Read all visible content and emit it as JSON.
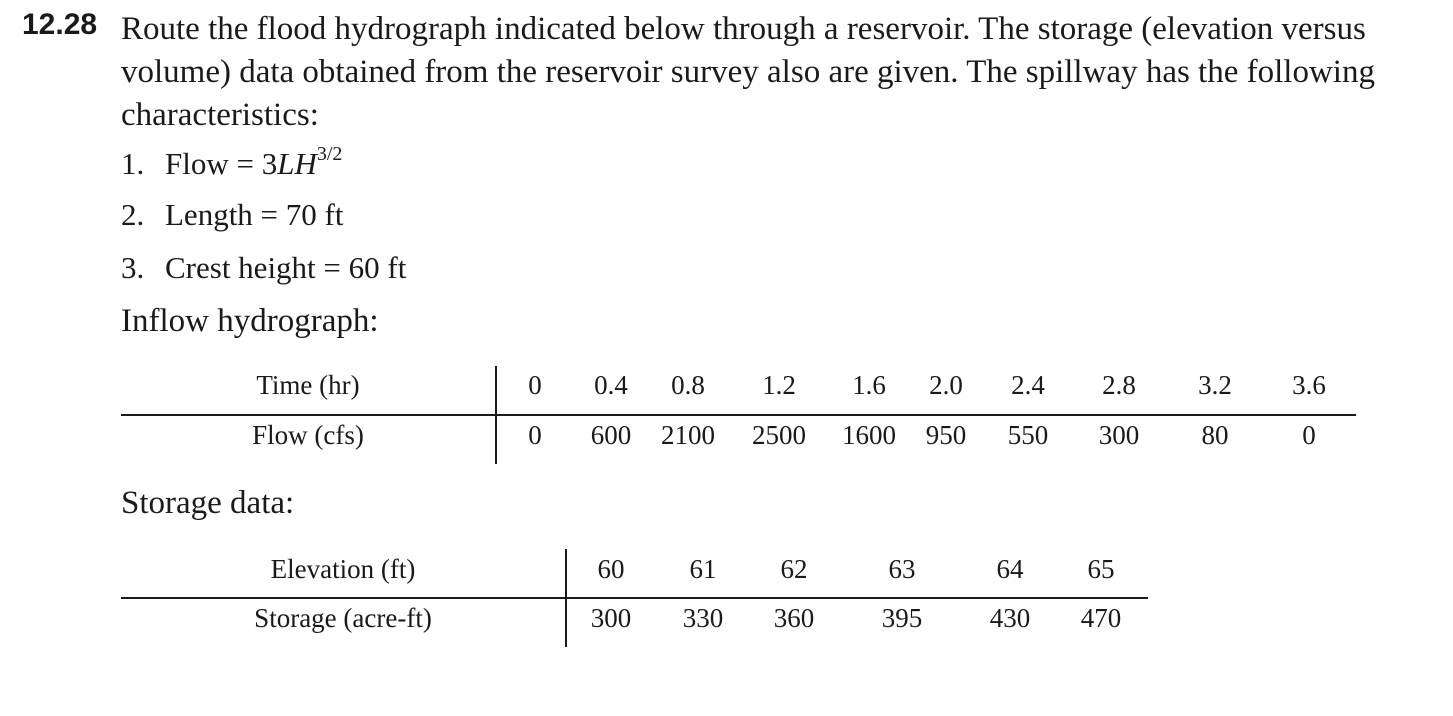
{
  "problem": {
    "number": "12.28",
    "statement": "Route the flood hydrograph indicated below through a reservoir. The storage (elevation versus volume) data obtained from the reservoir survey also are given. The spillway has the following characteristics:"
  },
  "characteristics": [
    {
      "num": "1.",
      "prefix": "Flow = 3",
      "math": "LH",
      "sup": "3/2"
    },
    {
      "num": "2.",
      "text": "Length = 70 ft"
    },
    {
      "num": "3.",
      "text": "Crest height = 60 ft"
    }
  ],
  "inflow": {
    "heading": "Inflow hydrograph:",
    "row_labels": [
      "Time (hr)",
      "Flow (cfs)"
    ],
    "time": [
      "0",
      "0.4",
      "0.8",
      "1.2",
      "1.6",
      "2.0",
      "2.4",
      "2.8",
      "3.2",
      "3.6"
    ],
    "flow": [
      "0",
      "600",
      "2100",
      "2500",
      "1600",
      "950",
      "550",
      "300",
      "80",
      "0"
    ]
  },
  "storage": {
    "heading": "Storage data:",
    "row_labels": [
      "Elevation (ft)",
      "Storage (acre-ft)"
    ],
    "elevation": [
      "60",
      "61",
      "62",
      "63",
      "64",
      "65"
    ],
    "storage": [
      "300",
      "330",
      "360",
      "395",
      "430",
      "470"
    ]
  }
}
